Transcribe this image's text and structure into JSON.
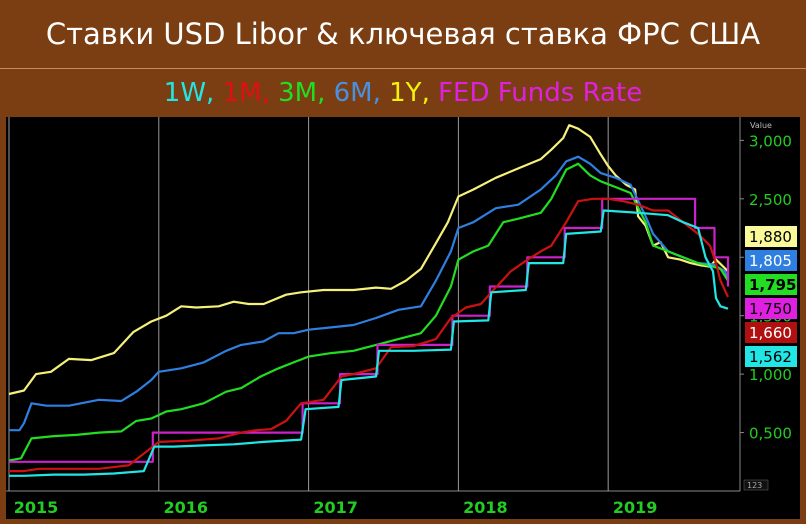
{
  "title": "Ставки USD Libor & ключевая ставка ФРС США",
  "legend": [
    {
      "text": "1W",
      "color": "#22e6e6"
    },
    {
      "text": ", ",
      "color": "#22e6e6"
    },
    {
      "text": "1M",
      "color": "#e01010"
    },
    {
      "text": ", ",
      "color": "#e01010"
    },
    {
      "text": "3M",
      "color": "#22dd22"
    },
    {
      "text": ", ",
      "color": "#22dd22"
    },
    {
      "text": "6M",
      "color": "#4a90e2"
    },
    {
      "text": ", ",
      "color": "#4a90e2"
    },
    {
      "text": "1Y",
      "color": "#f2f20a"
    },
    {
      "text": ", ",
      "color": "#f2f20a"
    },
    {
      "text": "FED Funds Rate",
      "color": "#e020e0"
    }
  ],
  "chart_data": {
    "type": "line",
    "x_ticks": [
      2015,
      2016,
      2017,
      2018,
      2019
    ],
    "xlim": [
      2014.98,
      2019.88
    ],
    "y_ticks": [
      "0,500",
      "1,000",
      "1,500",
      "2,000",
      "2,500",
      "3,000"
    ],
    "y_tick_values": [
      0.5,
      1.0,
      1.5,
      2.0,
      2.5,
      3.0
    ],
    "ylim": [
      0.0,
      3.2
    ],
    "axis_caption": "Value",
    "corner_label": "123",
    "grid": "vertical",
    "legend_placement": "top",
    "series": [
      {
        "name": "1Y",
        "color": "#f5f07a",
        "last_label": "1,880",
        "label_bg": "#fafa9a",
        "label_fg": "#000000",
        "points": [
          [
            2015.0,
            0.83
          ],
          [
            2015.1,
            0.86
          ],
          [
            2015.18,
            1.0
          ],
          [
            2015.28,
            1.02
          ],
          [
            2015.4,
            1.13
          ],
          [
            2015.55,
            1.12
          ],
          [
            2015.7,
            1.18
          ],
          [
            2015.83,
            1.36
          ],
          [
            2015.95,
            1.45
          ],
          [
            2016.05,
            1.5
          ],
          [
            2016.15,
            1.58
          ],
          [
            2016.25,
            1.57
          ],
          [
            2016.4,
            1.58
          ],
          [
            2016.5,
            1.62
          ],
          [
            2016.6,
            1.6
          ],
          [
            2016.7,
            1.6
          ],
          [
            2016.85,
            1.68
          ],
          [
            2016.95,
            1.7
          ],
          [
            2017.1,
            1.72
          ],
          [
            2017.3,
            1.72
          ],
          [
            2017.45,
            1.74
          ],
          [
            2017.55,
            1.73
          ],
          [
            2017.65,
            1.8
          ],
          [
            2017.75,
            1.9
          ],
          [
            2017.85,
            2.12
          ],
          [
            2017.93,
            2.3
          ],
          [
            2018.0,
            2.52
          ],
          [
            2018.1,
            2.58
          ],
          [
            2018.25,
            2.68
          ],
          [
            2018.4,
            2.76
          ],
          [
            2018.55,
            2.84
          ],
          [
            2018.62,
            2.92
          ],
          [
            2018.7,
            3.02
          ],
          [
            2018.74,
            3.13
          ],
          [
            2018.8,
            3.1
          ],
          [
            2018.88,
            3.03
          ],
          [
            2018.95,
            2.88
          ],
          [
            2019.0,
            2.78
          ],
          [
            2019.05,
            2.7
          ],
          [
            2019.12,
            2.62
          ],
          [
            2019.18,
            2.58
          ],
          [
            2019.2,
            2.35
          ],
          [
            2019.25,
            2.27
          ],
          [
            2019.3,
            2.1
          ],
          [
            2019.35,
            2.13
          ],
          [
            2019.4,
            2.0
          ],
          [
            2019.48,
            1.98
          ],
          [
            2019.55,
            1.95
          ],
          [
            2019.62,
            1.93
          ],
          [
            2019.68,
            1.92
          ],
          [
            2019.72,
            1.98
          ],
          [
            2019.76,
            1.93
          ],
          [
            2019.8,
            1.88
          ]
        ]
      },
      {
        "name": "6M",
        "color": "#2f7fe0",
        "last_label": "1,805",
        "label_bg": "#2f7fe0",
        "label_fg": "#ffffff",
        "points": [
          [
            2015.0,
            0.52
          ],
          [
            2015.07,
            0.52
          ],
          [
            2015.1,
            0.58
          ],
          [
            2015.15,
            0.75
          ],
          [
            2015.25,
            0.73
          ],
          [
            2015.4,
            0.73
          ],
          [
            2015.6,
            0.78
          ],
          [
            2015.75,
            0.77
          ],
          [
            2015.85,
            0.85
          ],
          [
            2015.95,
            0.95
          ],
          [
            2016.0,
            1.02
          ],
          [
            2016.15,
            1.05
          ],
          [
            2016.3,
            1.1
          ],
          [
            2016.45,
            1.2
          ],
          [
            2016.55,
            1.25
          ],
          [
            2016.7,
            1.28
          ],
          [
            2016.8,
            1.35
          ],
          [
            2016.9,
            1.35
          ],
          [
            2017.0,
            1.38
          ],
          [
            2017.15,
            1.4
          ],
          [
            2017.3,
            1.42
          ],
          [
            2017.45,
            1.48
          ],
          [
            2017.6,
            1.55
          ],
          [
            2017.75,
            1.58
          ],
          [
            2017.85,
            1.8
          ],
          [
            2017.95,
            2.05
          ],
          [
            2018.0,
            2.25
          ],
          [
            2018.1,
            2.3
          ],
          [
            2018.25,
            2.42
          ],
          [
            2018.4,
            2.45
          ],
          [
            2018.55,
            2.58
          ],
          [
            2018.65,
            2.7
          ],
          [
            2018.72,
            2.82
          ],
          [
            2018.8,
            2.86
          ],
          [
            2018.88,
            2.8
          ],
          [
            2018.95,
            2.72
          ],
          [
            2019.05,
            2.68
          ],
          [
            2019.15,
            2.62
          ],
          [
            2019.25,
            2.35
          ],
          [
            2019.3,
            2.2
          ],
          [
            2019.4,
            2.05
          ],
          [
            2019.5,
            2.0
          ],
          [
            2019.6,
            1.95
          ],
          [
            2019.7,
            1.94
          ],
          [
            2019.78,
            1.88
          ],
          [
            2019.8,
            1.81
          ]
        ]
      },
      {
        "name": "3M",
        "color": "#22dd22",
        "last_label": "1,795",
        "label_bg": "#22dd22",
        "label_fg": "#000000",
        "points": [
          [
            2015.0,
            0.26
          ],
          [
            2015.08,
            0.28
          ],
          [
            2015.15,
            0.45
          ],
          [
            2015.3,
            0.47
          ],
          [
            2015.45,
            0.48
          ],
          [
            2015.6,
            0.5
          ],
          [
            2015.75,
            0.51
          ],
          [
            2015.85,
            0.6
          ],
          [
            2015.95,
            0.62
          ],
          [
            2016.05,
            0.68
          ],
          [
            2016.15,
            0.7
          ],
          [
            2016.3,
            0.75
          ],
          [
            2016.45,
            0.85
          ],
          [
            2016.55,
            0.88
          ],
          [
            2016.68,
            0.98
          ],
          [
            2016.8,
            1.05
          ],
          [
            2016.9,
            1.1
          ],
          [
            2017.0,
            1.15
          ],
          [
            2017.15,
            1.18
          ],
          [
            2017.3,
            1.2
          ],
          [
            2017.45,
            1.25
          ],
          [
            2017.6,
            1.3
          ],
          [
            2017.75,
            1.35
          ],
          [
            2017.85,
            1.5
          ],
          [
            2017.95,
            1.75
          ],
          [
            2018.0,
            1.98
          ],
          [
            2018.1,
            2.05
          ],
          [
            2018.2,
            2.1
          ],
          [
            2018.3,
            2.3
          ],
          [
            2018.4,
            2.33
          ],
          [
            2018.55,
            2.38
          ],
          [
            2018.62,
            2.5
          ],
          [
            2018.72,
            2.75
          ],
          [
            2018.8,
            2.8
          ],
          [
            2018.88,
            2.7
          ],
          [
            2018.95,
            2.65
          ],
          [
            2019.05,
            2.6
          ],
          [
            2019.15,
            2.55
          ],
          [
            2019.25,
            2.3
          ],
          [
            2019.3,
            2.1
          ],
          [
            2019.4,
            2.05
          ],
          [
            2019.5,
            2.0
          ],
          [
            2019.6,
            1.95
          ],
          [
            2019.7,
            1.92
          ],
          [
            2019.75,
            1.9
          ],
          [
            2019.8,
            1.8
          ]
        ]
      },
      {
        "name": "FED Funds Rate",
        "color": "#cc22cc",
        "last_label": "1,750",
        "label_bg": "#e020e0",
        "label_fg": "#000000",
        "step": true,
        "points": [
          [
            2015.0,
            0.25
          ],
          [
            2015.96,
            0.25
          ],
          [
            2015.96,
            0.5
          ],
          [
            2016.96,
            0.5
          ],
          [
            2016.96,
            0.75
          ],
          [
            2017.21,
            0.75
          ],
          [
            2017.21,
            1.0
          ],
          [
            2017.46,
            1.0
          ],
          [
            2017.46,
            1.25
          ],
          [
            2017.96,
            1.25
          ],
          [
            2017.96,
            1.5
          ],
          [
            2018.21,
            1.5
          ],
          [
            2018.21,
            1.75
          ],
          [
            2018.46,
            1.75
          ],
          [
            2018.46,
            2.0
          ],
          [
            2018.71,
            2.0
          ],
          [
            2018.71,
            2.25
          ],
          [
            2018.96,
            2.25
          ],
          [
            2018.96,
            2.5
          ],
          [
            2019.58,
            2.5
          ],
          [
            2019.58,
            2.25
          ],
          [
            2019.71,
            2.25
          ],
          [
            2019.71,
            2.0
          ],
          [
            2019.8,
            2.0
          ],
          [
            2019.8,
            1.75
          ]
        ]
      },
      {
        "name": "1M",
        "color": "#cc1111",
        "last_label": "1,660",
        "label_bg": "#b01010",
        "label_fg": "#ffffff",
        "points": [
          [
            2015.0,
            0.17
          ],
          [
            2015.1,
            0.17
          ],
          [
            2015.2,
            0.19
          ],
          [
            2015.4,
            0.19
          ],
          [
            2015.6,
            0.19
          ],
          [
            2015.8,
            0.22
          ],
          [
            2015.93,
            0.35
          ],
          [
            2016.0,
            0.42
          ],
          [
            2016.2,
            0.43
          ],
          [
            2016.4,
            0.45
          ],
          [
            2016.55,
            0.5
          ],
          [
            2016.65,
            0.52
          ],
          [
            2016.75,
            0.53
          ],
          [
            2016.85,
            0.6
          ],
          [
            2016.95,
            0.75
          ],
          [
            2017.1,
            0.78
          ],
          [
            2017.22,
            0.98
          ],
          [
            2017.3,
            1.0
          ],
          [
            2017.45,
            1.05
          ],
          [
            2017.55,
            1.23
          ],
          [
            2017.7,
            1.24
          ],
          [
            2017.85,
            1.3
          ],
          [
            2017.95,
            1.48
          ],
          [
            2018.05,
            1.57
          ],
          [
            2018.15,
            1.6
          ],
          [
            2018.22,
            1.7
          ],
          [
            2018.35,
            1.88
          ],
          [
            2018.45,
            1.97
          ],
          [
            2018.55,
            2.05
          ],
          [
            2018.62,
            2.1
          ],
          [
            2018.72,
            2.3
          ],
          [
            2018.8,
            2.48
          ],
          [
            2018.9,
            2.5
          ],
          [
            2019.0,
            2.5
          ],
          [
            2019.1,
            2.48
          ],
          [
            2019.2,
            2.45
          ],
          [
            2019.3,
            2.4
          ],
          [
            2019.4,
            2.4
          ],
          [
            2019.5,
            2.3
          ],
          [
            2019.6,
            2.2
          ],
          [
            2019.68,
            2.1
          ],
          [
            2019.72,
            1.95
          ],
          [
            2019.75,
            1.8
          ],
          [
            2019.8,
            1.66
          ]
        ]
      },
      {
        "name": "1W",
        "color": "#22e6e6",
        "last_label": "1,562",
        "label_bg": "#22e6e6",
        "label_fg": "#000000",
        "points": [
          [
            2015.0,
            0.13
          ],
          [
            2015.1,
            0.13
          ],
          [
            2015.3,
            0.14
          ],
          [
            2015.5,
            0.14
          ],
          [
            2015.7,
            0.15
          ],
          [
            2015.9,
            0.17
          ],
          [
            2015.97,
            0.38
          ],
          [
            2016.1,
            0.38
          ],
          [
            2016.3,
            0.39
          ],
          [
            2016.5,
            0.4
          ],
          [
            2016.7,
            0.42
          ],
          [
            2016.95,
            0.44
          ],
          [
            2016.98,
            0.7
          ],
          [
            2017.2,
            0.72
          ],
          [
            2017.22,
            0.95
          ],
          [
            2017.45,
            0.98
          ],
          [
            2017.47,
            1.2
          ],
          [
            2017.7,
            1.2
          ],
          [
            2017.95,
            1.21
          ],
          [
            2017.97,
            1.45
          ],
          [
            2018.2,
            1.46
          ],
          [
            2018.22,
            1.7
          ],
          [
            2018.45,
            1.72
          ],
          [
            2018.47,
            1.95
          ],
          [
            2018.7,
            1.95
          ],
          [
            2018.72,
            2.2
          ],
          [
            2018.95,
            2.22
          ],
          [
            2018.97,
            2.4
          ],
          [
            2019.2,
            2.38
          ],
          [
            2019.4,
            2.36
          ],
          [
            2019.5,
            2.3
          ],
          [
            2019.6,
            2.25
          ],
          [
            2019.65,
            2.0
          ],
          [
            2019.7,
            1.88
          ],
          [
            2019.72,
            1.65
          ],
          [
            2019.75,
            1.58
          ],
          [
            2019.8,
            1.56
          ]
        ]
      }
    ]
  }
}
